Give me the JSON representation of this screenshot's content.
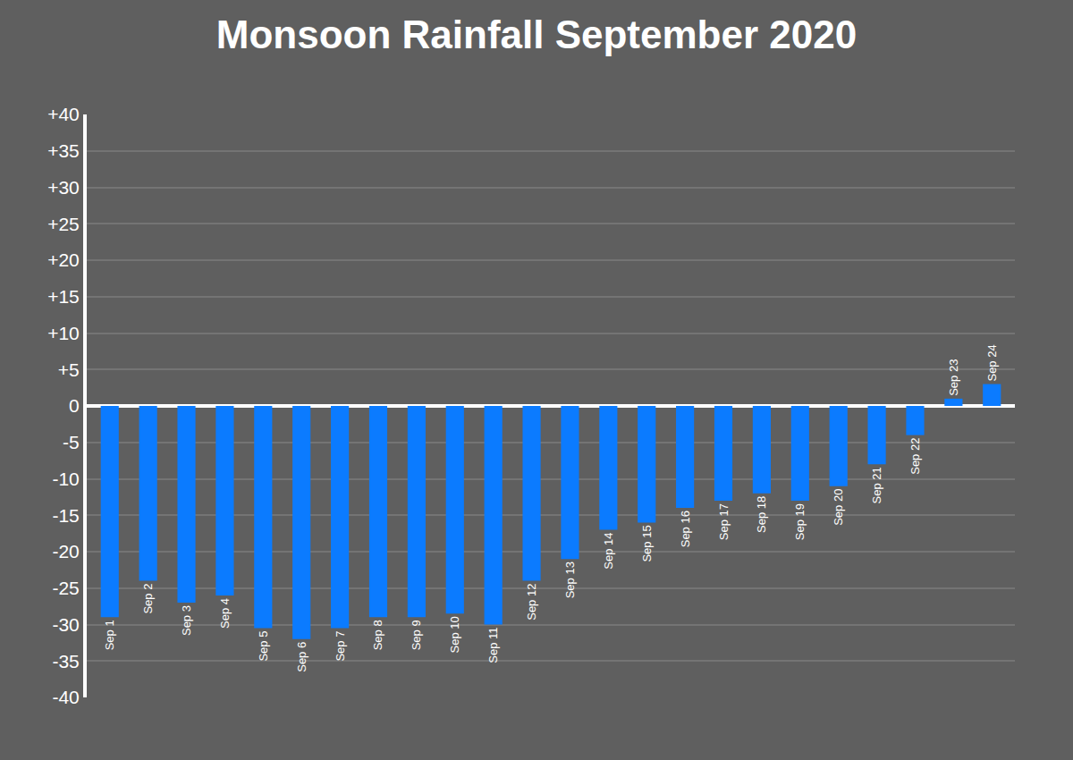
{
  "chart_data": {
    "type": "bar",
    "title": "Monsoon Rainfall September 2020",
    "categories": [
      "Sep 1",
      "Sep 2",
      "Sep 3",
      "Sep 4",
      "Sep 5",
      "Sep 6",
      "Sep 7",
      "Sep 8",
      "Sep 9",
      "Sep 10",
      "Sep 11",
      "Sep 12",
      "Sep 13",
      "Sep 14",
      "Sep 15",
      "Sep 16",
      "Sep 17",
      "Sep 18",
      "Sep 19",
      "Sep 20",
      "Sep 21",
      "Sep 22",
      "Sep 23",
      "Sep 24"
    ],
    "values": [
      -29,
      -24,
      -27,
      -26,
      -30.5,
      -32,
      -30.5,
      -29,
      -29,
      -28.5,
      -30,
      -24,
      -21,
      -17,
      -16,
      -14,
      -13,
      -12,
      -13,
      -11,
      -8,
      -4,
      1,
      3
    ],
    "color": "#0b7bff",
    "ylim": [
      -40,
      40
    ],
    "yticks": [
      {
        "value": 40,
        "label": "+40"
      },
      {
        "value": 35,
        "label": "+35"
      },
      {
        "value": 30,
        "label": "+30"
      },
      {
        "value": 25,
        "label": "+25"
      },
      {
        "value": 20,
        "label": "+20"
      },
      {
        "value": 15,
        "label": "+15"
      },
      {
        "value": 10,
        "label": "+10"
      },
      {
        "value": 5,
        "label": "+5"
      },
      0,
      -5,
      -10,
      -15,
      -20,
      -25,
      -30,
      -35,
      -40
    ],
    "grid": true,
    "tick_labels": "y"
  }
}
